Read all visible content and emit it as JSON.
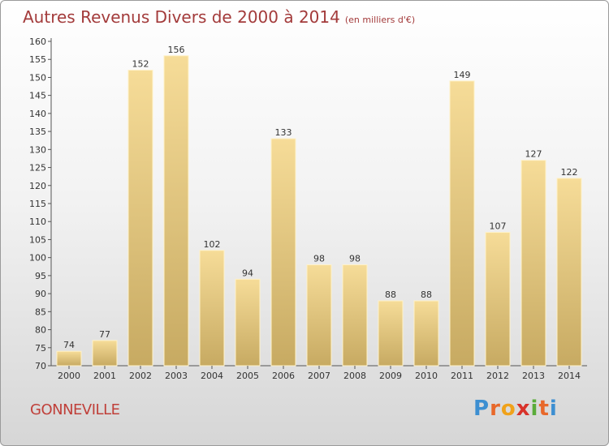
{
  "header": {
    "title": "Autres Revenus Divers de 2000 à 2014",
    "subtitle": "(en milliers d'€)"
  },
  "footer": {
    "city": "GONNEVILLE",
    "logo": [
      "P",
      "r",
      "o",
      "x",
      "i",
      "t",
      "i"
    ],
    "logo_colors": [
      "#3d8fd1",
      "#e8682a",
      "#f0a21a",
      "#d8322a",
      "#5aac3a",
      "#e8682a",
      "#3d8fd1"
    ]
  },
  "chart_data": {
    "type": "bar",
    "title": "Autres Revenus Divers de 2000 à 2014",
    "subtitle": "(en milliers d'€)",
    "xlabel": "",
    "ylabel": "",
    "ylim": [
      70,
      160
    ],
    "yticks": [
      70,
      75,
      80,
      85,
      90,
      95,
      100,
      105,
      110,
      115,
      120,
      125,
      130,
      135,
      140,
      145,
      150,
      155,
      160
    ],
    "grid": false,
    "bar_color": "#e3c57c",
    "categories": [
      "2000",
      "2001",
      "2002",
      "2003",
      "2004",
      "2005",
      "2006",
      "2007",
      "2008",
      "2009",
      "2010",
      "2011",
      "2012",
      "2013",
      "2014"
    ],
    "values": [
      74,
      77,
      152,
      156,
      102,
      94,
      133,
      98,
      98,
      88,
      88,
      149,
      107,
      127,
      122
    ]
  }
}
